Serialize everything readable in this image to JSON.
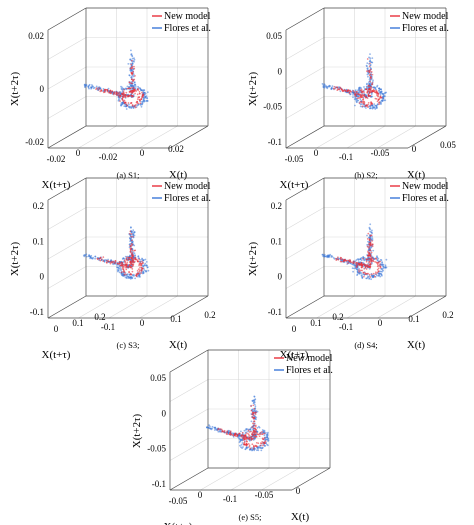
{
  "figure": {
    "legend_new_model": "New model",
    "legend_flores": "Flores et al.",
    "colors": {
      "new_model": "#e8303a",
      "flores": "#3c78d8",
      "box": "#444444",
      "grid": "#d9d9d9"
    }
  },
  "chart_data": [
    {
      "type": "scatter",
      "projection": "3d-phase-portrait",
      "caption": "(a) S1;",
      "xlabel": "X(t)",
      "ylabel": "X(t+τ)",
      "zlabel": "X(t+2τ)",
      "x_ticks": [
        "-0.02",
        "0",
        "0.02"
      ],
      "y_ticks": [
        "-0.02",
        "0"
      ],
      "z_ticks": [
        "-0.02",
        "0",
        "0.02"
      ],
      "xlim": [
        -0.03,
        0.03
      ],
      "ylim": [
        -0.03,
        0.02
      ],
      "zlim": [
        -0.03,
        0.03
      ],
      "legend": [
        "New model",
        "Flores et al."
      ],
      "legend_position": "top-right",
      "grid": true,
      "series": [
        {
          "name": "New model",
          "color": "#e8303a"
        },
        {
          "name": "Flores et al.",
          "color": "#3c78d8"
        }
      ]
    },
    {
      "type": "scatter",
      "projection": "3d-phase-portrait",
      "caption": "(b) S2;",
      "xlabel": "X(t)",
      "ylabel": "X(t+τ)",
      "zlabel": "X(t+2τ)",
      "x_ticks": [
        "-0.1",
        "-0.05",
        "0",
        "0.05"
      ],
      "y_ticks": [
        "-0.05",
        "0"
      ],
      "z_ticks": [
        "-0.1",
        "-0.05",
        "0",
        "0.05"
      ],
      "xlim": [
        -0.12,
        0.06
      ],
      "ylim": [
        -0.1,
        0.06
      ],
      "zlim": [
        -0.12,
        0.06
      ],
      "legend": [
        "New model",
        "Flores et al."
      ],
      "legend_position": "top-right",
      "grid": true,
      "series": [
        {
          "name": "New model",
          "color": "#e8303a"
        },
        {
          "name": "Flores et al.",
          "color": "#3c78d8"
        }
      ]
    },
    {
      "type": "scatter",
      "projection": "3d-phase-portrait",
      "caption": "(c) S3;",
      "xlabel": "X(t)",
      "ylabel": "X(t+τ)",
      "zlabel": "X(t+2τ)",
      "x_ticks": [
        "-0.1",
        "0",
        "0.1",
        "0.2"
      ],
      "y_ticks": [
        "0",
        "0.1",
        "0.2"
      ],
      "z_ticks": [
        "-0.1",
        "0",
        "0.1",
        "0.2"
      ],
      "xlim": [
        -0.12,
        0.22
      ],
      "ylim": [
        -0.05,
        0.22
      ],
      "zlim": [
        -0.12,
        0.22
      ],
      "legend": [
        "New model",
        "Flores et al."
      ],
      "legend_position": "top-right",
      "grid": true,
      "series": [
        {
          "name": "New model",
          "color": "#e8303a"
        },
        {
          "name": "Flores et al.",
          "color": "#3c78d8"
        }
      ]
    },
    {
      "type": "scatter",
      "projection": "3d-phase-portrait",
      "caption": "(d) S4;",
      "xlabel": "X(t)",
      "ylabel": "X(t+τ)",
      "zlabel": "X(t+2τ)",
      "x_ticks": [
        "-0.1",
        "0",
        "0.1",
        "0.2"
      ],
      "y_ticks": [
        "0",
        "0.1",
        "0.2"
      ],
      "z_ticks": [
        "-0.1",
        "0",
        "0.1",
        "0.2"
      ],
      "xlim": [
        -0.12,
        0.22
      ],
      "ylim": [
        -0.05,
        0.22
      ],
      "zlim": [
        -0.12,
        0.22
      ],
      "legend": [
        "New model",
        "Flores et al."
      ],
      "legend_position": "top-right",
      "grid": true,
      "series": [
        {
          "name": "New model",
          "color": "#e8303a"
        },
        {
          "name": "Flores et al.",
          "color": "#3c78d8"
        }
      ]
    },
    {
      "type": "scatter",
      "projection": "3d-phase-portrait",
      "caption": "(e) S5;",
      "xlabel": "X(t)",
      "ylabel": "X(t+τ)",
      "zlabel": "X(t+2τ)",
      "x_ticks": [
        "-0.1",
        "-0.05",
        "0"
      ],
      "y_ticks": [
        "-0.05",
        "0"
      ],
      "z_ticks": [
        "-0.1",
        "-0.05",
        "0",
        "0.05"
      ],
      "xlim": [
        -0.12,
        0.06
      ],
      "ylim": [
        -0.1,
        0.06
      ],
      "zlim": [
        -0.12,
        0.06
      ],
      "legend": [
        "New model",
        "Flores et al."
      ],
      "legend_position": "top-right",
      "grid": true,
      "series": [
        {
          "name": "New model",
          "color": "#e8303a"
        },
        {
          "name": "Flores et al.",
          "color": "#3c78d8"
        }
      ]
    }
  ]
}
